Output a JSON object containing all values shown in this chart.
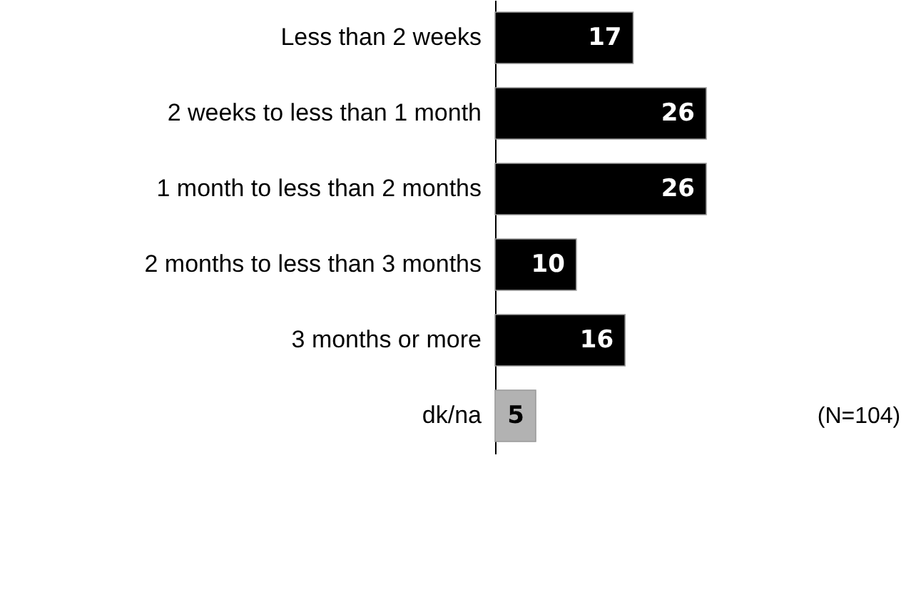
{
  "chart_data": {
    "type": "bar",
    "orientation": "horizontal",
    "categories": [
      "Less than 2 weeks",
      "2 weeks to less than 1 month",
      "1 month to less than 2 months",
      "2 months to less than 3 months",
      "3 months or more",
      "dk/na"
    ],
    "values": [
      17,
      26,
      26,
      10,
      16,
      5
    ],
    "colors": [
      "#000000",
      "#000000",
      "#000000",
      "#000000",
      "#000000",
      "#b2b2b2"
    ],
    "data_labels": true,
    "annotations": [
      "(N=104)"
    ]
  }
}
